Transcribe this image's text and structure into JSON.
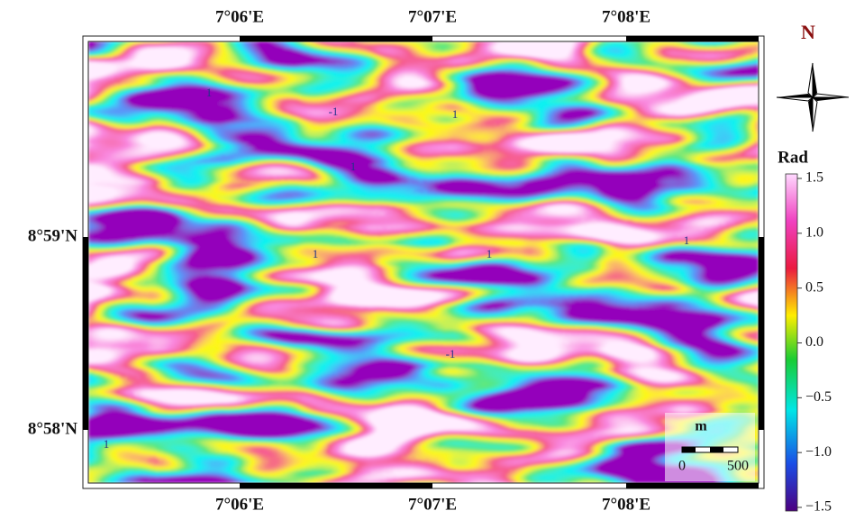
{
  "map": {
    "lon_labels": [
      "7°06'E",
      "7°07'E",
      "7°08'E"
    ],
    "lat_labels": [
      "8°59'N",
      "8°58'N"
    ],
    "north": "N",
    "contour_labels": [
      "1",
      "1",
      "1",
      "1",
      "1",
      "1",
      "-1",
      "-1",
      "1"
    ],
    "scale_bar": {
      "unit": "m",
      "ticks": [
        0,
        500
      ]
    },
    "colorbar": {
      "label": "Rad",
      "lim": [
        -1.5,
        1.5
      ],
      "ticks": [
        1.5,
        {
          "value": 1.0,
          "label": "1.0"
        },
        0.5,
        {
          "value": 0.0,
          "label": "0.0"
        },
        {
          "value": -0.5,
          "label": "−0.5"
        },
        {
          "value": -1.0,
          "label": "−1.0"
        },
        {
          "value": -1.5,
          "label": "−1.5"
        }
      ]
    }
  }
}
